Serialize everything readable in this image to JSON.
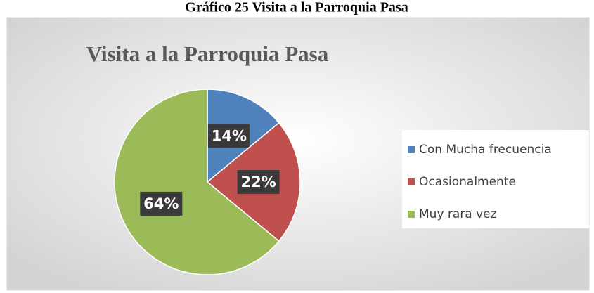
{
  "caption": "Gráfico 25 Visita a la Parroquia Pasa",
  "chart_data": {
    "type": "pie",
    "title": "Visita a la Parroquia Pasa",
    "categories": [
      "Con Mucha frecuencia",
      "Ocasionalmente",
      "Muy rara vez"
    ],
    "values": [
      14,
      22,
      64
    ],
    "value_labels": [
      "14%",
      "22%",
      "64%"
    ],
    "colors": [
      "#4f81bd",
      "#c0504d",
      "#9bbb59"
    ],
    "legend": "right"
  }
}
